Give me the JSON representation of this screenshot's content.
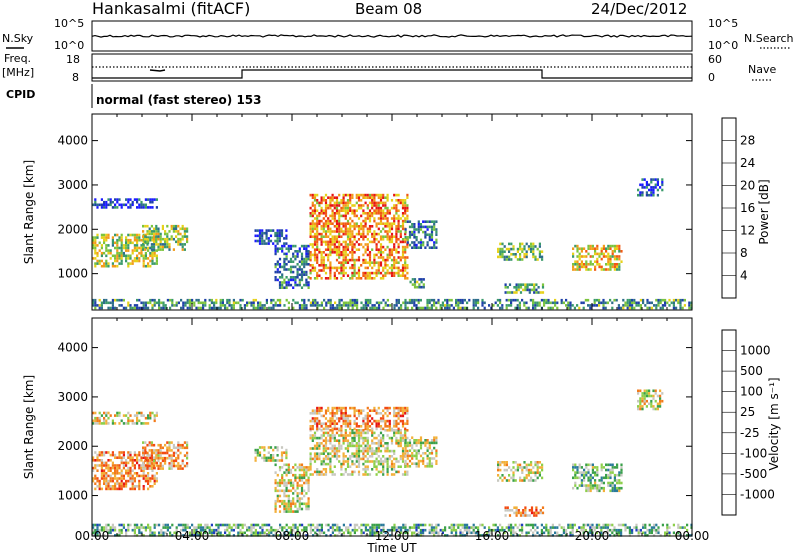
{
  "header": {
    "station": "Hankasalmi (fitACF)",
    "beam": "Beam 08",
    "date": "24/Dec/2012"
  },
  "panels": {
    "nsky_label": "N.Sky",
    "nsearch_label": "N.Search",
    "nsky_ticks": [
      "10^5",
      "10^0"
    ],
    "nsearch_ticks": [
      "10^5",
      "10^0"
    ],
    "freq_label": "Freq.",
    "freq_unit": "[MHz]",
    "freq_ticks": [
      "18",
      "8"
    ],
    "nave_label": "Nave",
    "nave_ticks": [
      "60",
      "0"
    ],
    "cpid_label": "CPID",
    "cpid_text": "normal (fast stereo) 153"
  },
  "chart_data": [
    {
      "type": "heatmap",
      "title": "",
      "ylabel": "Slant Range [km]",
      "xlabel": "",
      "colorbar_label": "Power [dB]",
      "colorbar_ticks": [
        "28",
        "24",
        "20",
        "16",
        "12",
        "8",
        "4"
      ],
      "yticks": [
        "4000",
        "3000",
        "2000",
        "1000"
      ],
      "xlim": [
        0,
        24
      ],
      "ylim": [
        180,
        4600
      ],
      "colors": [
        "#1a1aff",
        "#1e3fa8",
        "#2e6e8a",
        "#3a9a6a",
        "#7cc43e",
        "#e6d21a",
        "#f29b1a",
        "#f25a14",
        "#e61414"
      ],
      "regions": [
        {
          "t0": 0.0,
          "t1": 2.6,
          "r0": 1150,
          "r1": 1900,
          "level": 0.55
        },
        {
          "t0": 2.0,
          "t1": 3.8,
          "r0": 1550,
          "r1": 2100,
          "level": 0.5
        },
        {
          "t0": 0.0,
          "t1": 2.6,
          "r0": 2480,
          "r1": 2700,
          "level": 0.15
        },
        {
          "t0": 6.5,
          "t1": 7.8,
          "r0": 1700,
          "r1": 2000,
          "level": 0.2
        },
        {
          "t0": 7.3,
          "t1": 8.7,
          "r0": 700,
          "r1": 1650,
          "level": 0.25
        },
        {
          "t0": 8.7,
          "t1": 12.6,
          "r0": 900,
          "r1": 2800,
          "level": 0.75
        },
        {
          "t0": 12.5,
          "t1": 13.8,
          "r0": 1600,
          "r1": 2200,
          "level": 0.3
        },
        {
          "t0": 12.7,
          "t1": 13.3,
          "r0": 700,
          "r1": 900,
          "level": 0.35
        },
        {
          "t0": 16.2,
          "t1": 18.0,
          "r0": 1300,
          "r1": 1700,
          "level": 0.45
        },
        {
          "t0": 16.5,
          "t1": 18.0,
          "r0": 600,
          "r1": 780,
          "level": 0.4
        },
        {
          "t0": 19.2,
          "t1": 21.2,
          "r0": 1100,
          "r1": 1650,
          "level": 0.65
        },
        {
          "t0": 21.8,
          "t1": 22.8,
          "r0": 2750,
          "r1": 3150,
          "level": 0.2
        },
        {
          "t0": 0.0,
          "t1": 24.0,
          "r0": 200,
          "r1": 430,
          "level": 0.35
        }
      ]
    },
    {
      "type": "heatmap",
      "title": "",
      "ylabel": "Slant Range [km]",
      "xlabel": "Time UT",
      "colorbar_label": "Velocity [m s⁻¹]",
      "colorbar_ticks": [
        "1000",
        "500",
        "100",
        "25",
        "-25",
        "-100",
        "-500",
        "-1000"
      ],
      "yticks": [
        "4000",
        "3000",
        "2000",
        "1000"
      ],
      "xticks": [
        "00:00",
        "04:00",
        "08:00",
        "12:00",
        "16:00",
        "20:00",
        "00:00"
      ],
      "xlim": [
        0,
        24
      ],
      "ylim": [
        180,
        4600
      ],
      "colors": [
        "#1f3fc0",
        "#2a7a9a",
        "#3aa04a",
        "#8dcf4a",
        "#c8c8c0",
        "#f2b03a",
        "#f27a1a",
        "#f24a12",
        "#e61414"
      ],
      "regions": [
        {
          "t0": 0.0,
          "t1": 2.6,
          "r0": 1150,
          "r1": 1900,
          "level": 0.7
        },
        {
          "t0": 2.0,
          "t1": 3.8,
          "r0": 1550,
          "r1": 2100,
          "level": 0.65
        },
        {
          "t0": 0.0,
          "t1": 2.6,
          "r0": 2480,
          "r1": 2700,
          "level": 0.5
        },
        {
          "t0": 6.5,
          "t1": 7.8,
          "r0": 1700,
          "r1": 2000,
          "level": 0.5
        },
        {
          "t0": 7.3,
          "t1": 8.7,
          "r0": 700,
          "r1": 1650,
          "level": 0.5
        },
        {
          "t0": 8.7,
          "t1": 12.6,
          "r0": 1450,
          "r1": 2350,
          "level": 0.5
        },
        {
          "t0": 8.7,
          "t1": 12.6,
          "r0": 2350,
          "r1": 2800,
          "level": 0.7
        },
        {
          "t0": 12.5,
          "t1": 13.8,
          "r0": 1600,
          "r1": 2200,
          "level": 0.5
        },
        {
          "t0": 16.2,
          "t1": 18.0,
          "r0": 1300,
          "r1": 1700,
          "level": 0.5
        },
        {
          "t0": 16.5,
          "t1": 18.0,
          "r0": 600,
          "r1": 780,
          "level": 0.68
        },
        {
          "t0": 19.2,
          "t1": 21.2,
          "r0": 1100,
          "r1": 1650,
          "level": 0.35
        },
        {
          "t0": 21.8,
          "t1": 22.8,
          "r0": 2750,
          "r1": 3150,
          "level": 0.5
        },
        {
          "t0": 0.0,
          "t1": 24.0,
          "r0": 200,
          "r1": 430,
          "level": 0.32
        }
      ]
    }
  ]
}
